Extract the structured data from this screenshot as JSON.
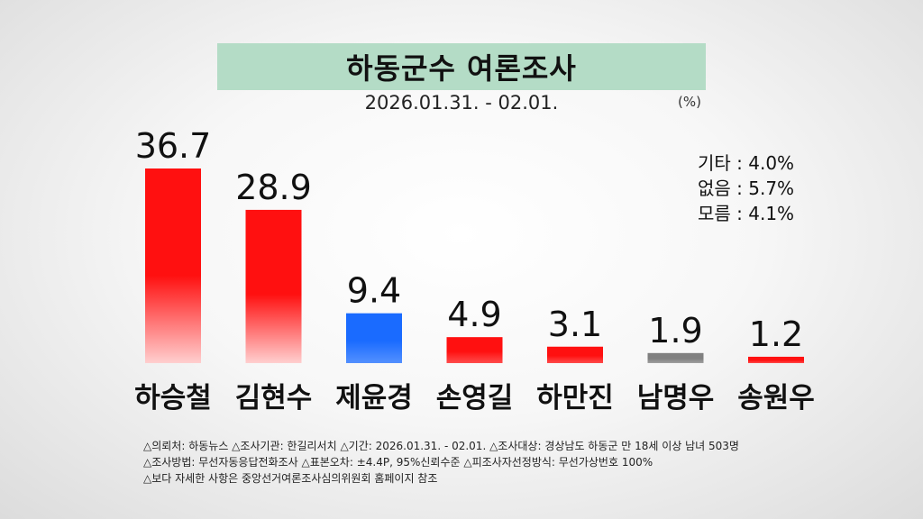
{
  "header": {
    "title": "하동군수 여론조사",
    "date": "2026.01.31. - 02.01.",
    "unit": "(%)"
  },
  "others": [
    "기타 : 4.0%",
    "없음 : 5.7%",
    "모름 : 4.1%"
  ],
  "footnotes": [
    "△의뢰처: 하동뉴스  △조사기관: 한길리서치 △기간: 2026.01.31. - 02.01. △조사대상: 경상남도 하동군 만 18세 이상 남녀 503명",
    "△조사방법: 무선자동응답전화조사  △표본오차: ±4.4P, 95%신뢰수준 △피조사자선정방식: 무선가상번호 100%",
    "△보다 자세한 사항은 중앙선거여론조사심의위원회 홈페이지 참조"
  ],
  "colors": {
    "red": "#ff1010",
    "blue": "#1a6bff",
    "gray": "#808080",
    "title_bg": "#b4dcc6"
  },
  "chart_data": {
    "type": "bar",
    "categories": [
      "하승철",
      "김현수",
      "제윤경",
      "손영길",
      "하만진",
      "남명우",
      "송원우"
    ],
    "values": [
      36.7,
      28.9,
      9.4,
      4.9,
      3.1,
      1.9,
      1.2
    ],
    "value_labels": [
      "36.7",
      "28.9",
      "9.4",
      "4.9",
      "3.1",
      "1.9",
      "1.2"
    ],
    "bar_colors": [
      "#ff1010",
      "#ff1010",
      "#1a6bff",
      "#ff1010",
      "#ff1010",
      "#808080",
      "#ff1010"
    ],
    "ylim": [
      0,
      36.7
    ],
    "grid": false,
    "legend": "none"
  }
}
